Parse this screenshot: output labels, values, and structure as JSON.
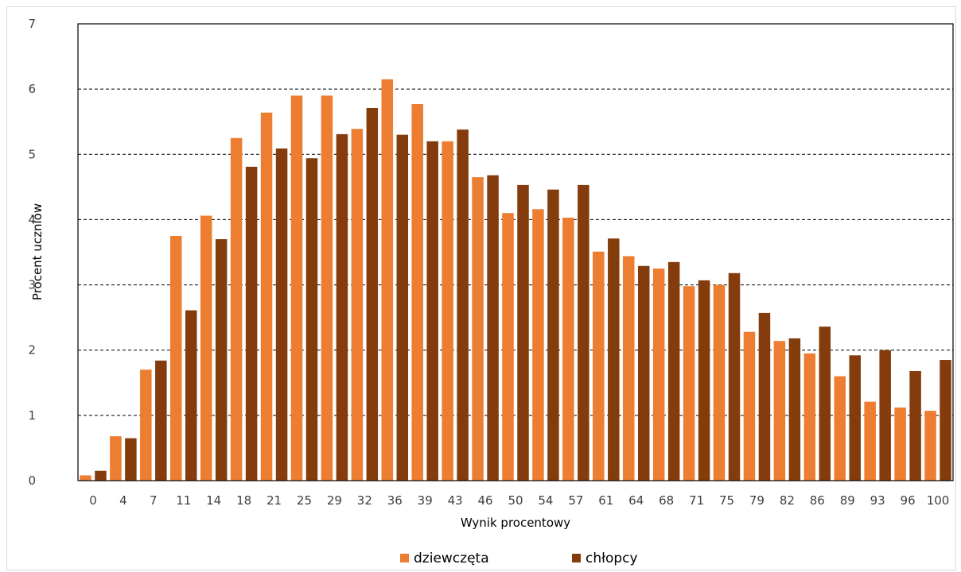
{
  "chart_data": {
    "type": "bar",
    "title": "",
    "xlabel": "Wynik procentowy",
    "ylabel": "Procent uczniów",
    "ylim": [
      0,
      7
    ],
    "yticks": [
      0,
      1,
      2,
      3,
      4,
      5,
      6,
      7
    ],
    "grid": "horizontal-dashed",
    "legend": "bottom-center",
    "categories": [
      "0",
      "4",
      "7",
      "11",
      "14",
      "18",
      "21",
      "25",
      "29",
      "32",
      "36",
      "39",
      "43",
      "46",
      "50",
      "54",
      "57",
      "61",
      "64",
      "68",
      "71",
      "75",
      "79",
      "82",
      "86",
      "89",
      "93",
      "96",
      "100"
    ],
    "series": [
      {
        "name": "dziewczęta",
        "color": "#ed7d31",
        "values": [
          0.08,
          0.68,
          1.7,
          3.75,
          4.06,
          5.25,
          5.64,
          5.9,
          5.9,
          5.39,
          6.15,
          5.77,
          5.2,
          4.65,
          4.1,
          4.16,
          4.03,
          3.51,
          3.44,
          3.25,
          2.98,
          3.0,
          2.28,
          2.14,
          1.95,
          1.6,
          1.21,
          1.12,
          1.07
        ]
      },
      {
        "name": "chłopcy",
        "color": "#843c0c",
        "values": [
          0.15,
          0.65,
          1.84,
          2.61,
          3.7,
          4.81,
          5.09,
          4.94,
          5.31,
          5.71,
          5.3,
          5.2,
          5.38,
          4.68,
          4.53,
          4.46,
          4.53,
          3.71,
          3.29,
          3.35,
          3.07,
          3.18,
          2.57,
          2.18,
          2.36,
          1.92,
          2.0,
          1.68,
          1.85
        ]
      }
    ]
  }
}
